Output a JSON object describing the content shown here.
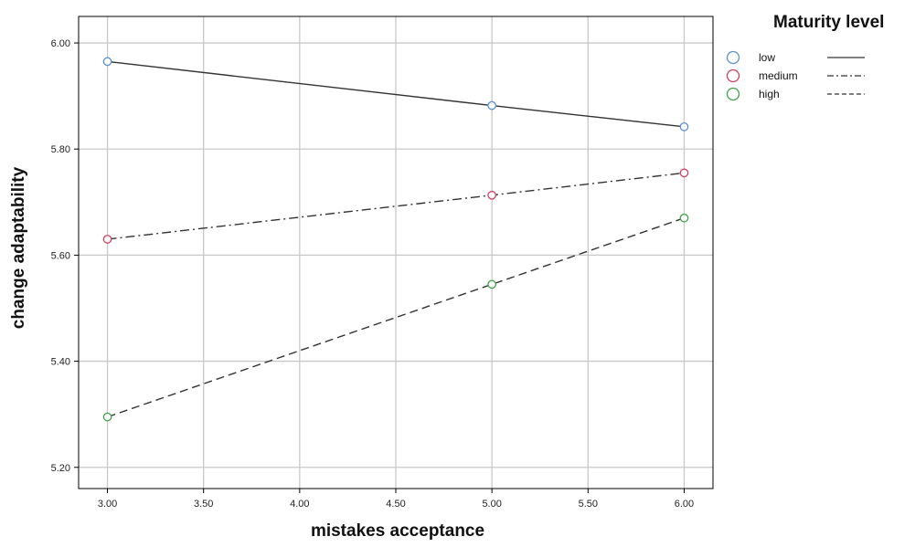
{
  "chart_data": {
    "type": "line",
    "xlabel": "mistakes acceptance",
    "ylabel": "change adaptability",
    "x": [
      3.0,
      5.0,
      6.0
    ],
    "xlim": [
      2.85,
      6.15
    ],
    "ylim": [
      5.16,
      6.05
    ],
    "x_ticks": [
      "3.00",
      "3.50",
      "4.00",
      "4.50",
      "5.00",
      "5.50",
      "6.00"
    ],
    "y_ticks": [
      "5.20",
      "5.40",
      "5.60",
      "5.80",
      "6.00"
    ],
    "grid": true,
    "legend": {
      "title": "Maturity level",
      "position": "right"
    },
    "series": [
      {
        "name": "low",
        "values": [
          5.965,
          5.882,
          5.842
        ],
        "color": "#5b8fd4",
        "dash": "solid"
      },
      {
        "name": "medium",
        "values": [
          5.63,
          5.713,
          5.755
        ],
        "color": "#d0405f",
        "dash": "dash-dot"
      },
      {
        "name": "high",
        "values": [
          5.295,
          5.545,
          5.67
        ],
        "color": "#3ea34a",
        "dash": "dashed"
      }
    ]
  }
}
